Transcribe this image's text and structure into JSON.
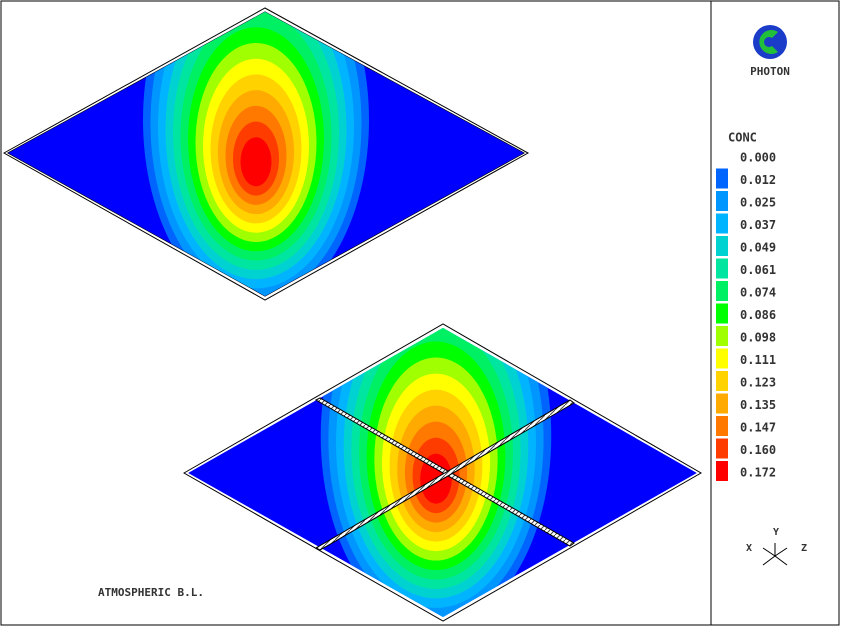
{
  "logo": {
    "text": "PHOTON"
  },
  "legend": {
    "title": "CONC",
    "labels": [
      "0.000",
      "0.012",
      "0.025",
      "0.037",
      "0.049",
      "0.061",
      "0.074",
      "0.086",
      "0.098",
      "0.111",
      "0.123",
      "0.135",
      "0.147",
      "0.160",
      "0.172"
    ],
    "colors": [
      "#0000ff",
      "#0064ff",
      "#0096ff",
      "#00b4ff",
      "#00d2d2",
      "#00e6a0",
      "#00f064",
      "#00ff00",
      "#a0ff00",
      "#ffff00",
      "#ffd200",
      "#ffaa00",
      "#ff7800",
      "#ff3c00",
      "#ff0000"
    ]
  },
  "axes": {
    "x": "X",
    "y": "Y",
    "z": "Z"
  },
  "caption": "ATMOSPHERIC B.L."
}
